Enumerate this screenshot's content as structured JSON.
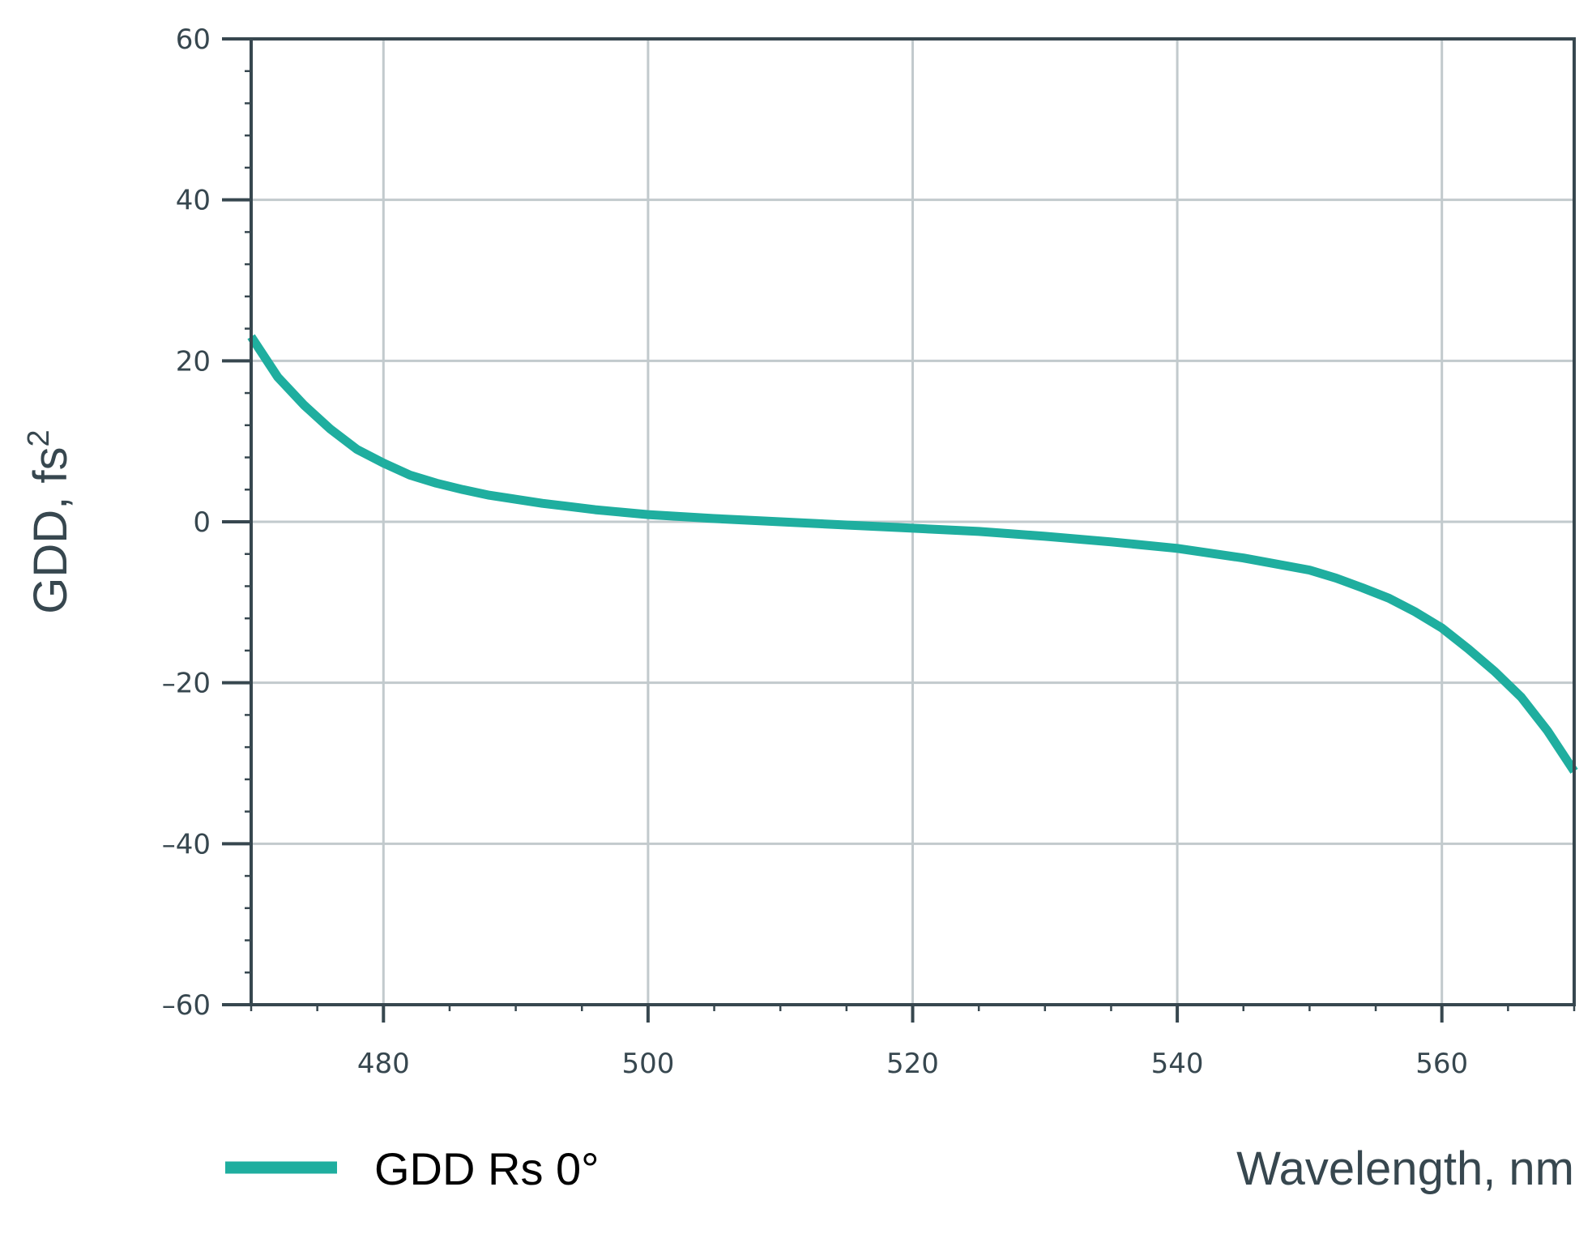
{
  "chart_data": {
    "type": "line",
    "title": "",
    "xlabel": "Wavelength, nm",
    "ylabel": "GDD, fs",
    "ylabel_superscript": "2",
    "xlim": [
      470,
      570
    ],
    "ylim": [
      -60,
      60
    ],
    "xticks": [
      480,
      500,
      520,
      540,
      560
    ],
    "yticks": [
      60,
      40,
      20,
      0,
      -20,
      -40,
      -60
    ],
    "ytick_labels": [
      "60",
      "40",
      "20",
      "0",
      "–20",
      "–40",
      "–60"
    ],
    "grid": true,
    "legend_position": "bottom-left",
    "colors": {
      "series": "#1fae9f",
      "axis": "#37474f",
      "grid": "#c2cacd"
    },
    "series": [
      {
        "name": "GDD Rs 0°",
        "x": [
          470,
          472,
          474,
          476,
          478,
          480,
          482,
          484,
          486,
          488,
          490,
          492,
          494,
          496,
          498,
          500,
          505,
          510,
          515,
          520,
          525,
          530,
          535,
          540,
          545,
          550,
          552,
          554,
          556,
          558,
          560,
          562,
          564,
          566,
          568,
          570
        ],
        "y": [
          23,
          18,
          14.5,
          11.5,
          9,
          7.3,
          5.8,
          4.8,
          4,
          3.3,
          2.8,
          2.3,
          1.9,
          1.5,
          1.2,
          0.9,
          0.4,
          0,
          -0.4,
          -0.8,
          -1.2,
          -1.8,
          -2.5,
          -3.3,
          -4.5,
          -6,
          -7,
          -8.2,
          -9.5,
          -11.2,
          -13.2,
          -15.8,
          -18.6,
          -21.8,
          -26,
          -31
        ]
      }
    ]
  }
}
